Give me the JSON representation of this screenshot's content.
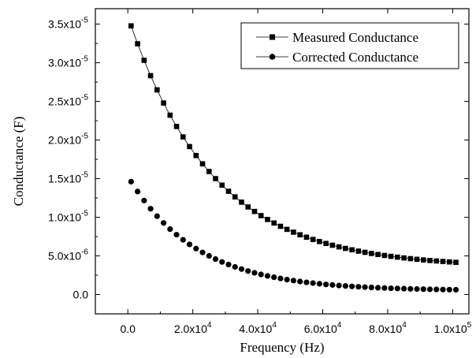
{
  "chart_data": {
    "type": "scatter",
    "xlabel": "Frequency (Hz)",
    "ylabel": "Conductance (F)",
    "xlim": [
      -10000,
      105000
    ],
    "ylim": [
      -2.5e-06,
      3.7e-05
    ],
    "x_ticks": [
      {
        "value": 0,
        "label": "0.0"
      },
      {
        "value": 20000,
        "label": "2.0x10",
        "exp": "4"
      },
      {
        "value": 40000,
        "label": "4.0x10",
        "exp": "4"
      },
      {
        "value": 60000,
        "label": "6.0x10",
        "exp": "4"
      },
      {
        "value": 80000,
        "label": "8.0x10",
        "exp": "4"
      },
      {
        "value": 100000,
        "label": "1.0x10",
        "exp": "5"
      }
    ],
    "y_ticks": [
      {
        "value": 0,
        "label": "0.0"
      },
      {
        "value": 5e-06,
        "label": "5.0x10",
        "exp": "-6"
      },
      {
        "value": 1e-05,
        "label": "1.0x10",
        "exp": "-5"
      },
      {
        "value": 1.5e-05,
        "label": "1.5x10",
        "exp": "-5"
      },
      {
        "value": 2e-05,
        "label": "2.0x10",
        "exp": "-5"
      },
      {
        "value": 2.5e-05,
        "label": "2.5x10",
        "exp": "-5"
      },
      {
        "value": 3e-05,
        "label": "3.0x10",
        "exp": "-5"
      },
      {
        "value": 3.5e-05,
        "label": "3.5x10",
        "exp": "-5"
      }
    ],
    "legend_position": "top-right",
    "frame": "box",
    "grid": false,
    "series": [
      {
        "name": "Measured Conductance",
        "marker": "square",
        "line": true,
        "points_note": "sampled every 2000 Hz",
        "x_start": 1000,
        "x_end": 101000,
        "x_step": 2000,
        "model": {
          "offset": 3.5e-06,
          "amplitude": 3.25e-05,
          "decay": 26000
        }
      },
      {
        "name": "Corrected Conductance",
        "marker": "circle",
        "line": false,
        "x_start": 1000,
        "x_end": 101000,
        "x_step": 2000,
        "model": {
          "offset": 5e-07,
          "amplitude": 1.48e-05,
          "decay": 21000
        }
      }
    ]
  }
}
